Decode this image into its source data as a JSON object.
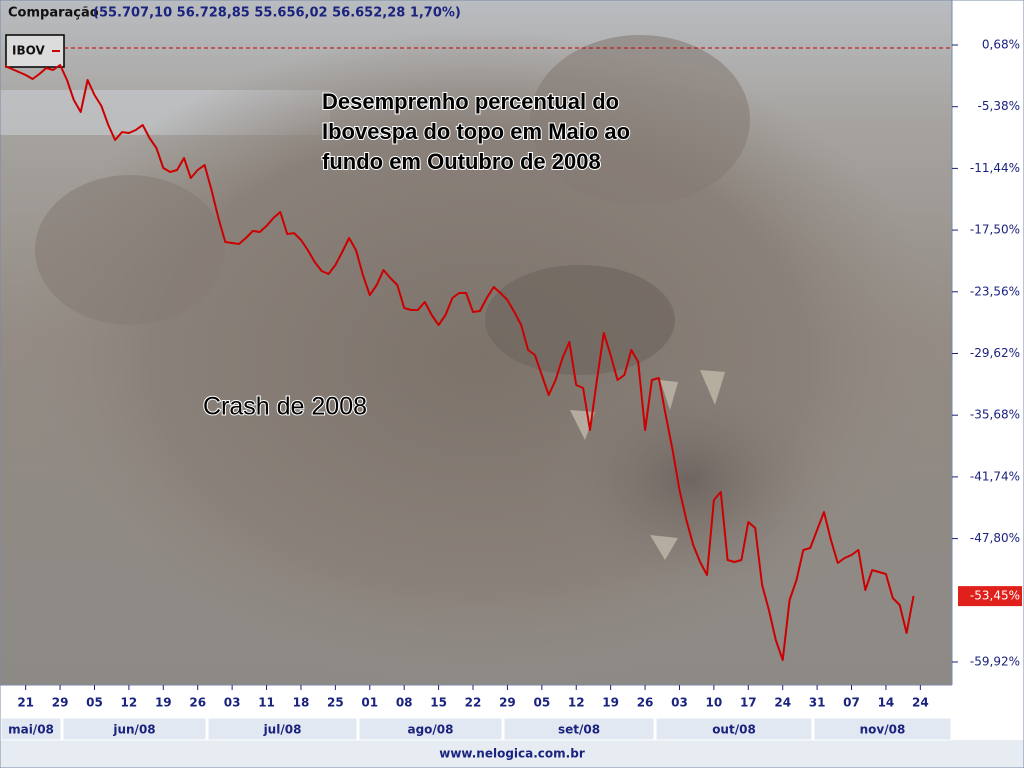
{
  "chart_data": {
    "type": "line",
    "title": "Comparação",
    "subtitle": "(55.707,10  56.728,85  55.656,02  56.652,28  1,70%)",
    "annotations": [
      "Desemprenho percentual do",
      "Ibovespa do topo em Maio ao",
      "fundo em Outubro de 2008",
      "Crash de 2008"
    ],
    "source": "www.nelogica.com.br",
    "months": [
      "mai/08",
      "jun/08",
      "jul/08",
      "ago/08",
      "set/08",
      "out/08",
      "nov/08"
    ],
    "series": [
      {
        "name": "IBOV",
        "color": "#cc0000",
        "values": [
          -1.38,
          -1.68,
          -1.97,
          -2.27,
          -2.66,
          -2.17,
          -1.58,
          -1.78,
          -1.28,
          -2.76,
          -4.72,
          -5.9,
          -2.76,
          -4.23,
          -5.31,
          -7.18,
          -8.65,
          -7.87,
          -7.96,
          -7.67,
          -7.18,
          -8.45,
          -9.44,
          -11.4,
          -11.79,
          -11.6,
          -10.42,
          -12.38,
          -11.6,
          -11.11,
          -13.56,
          -16.31,
          -18.67,
          -18.77,
          -18.87,
          -18.28,
          -17.59,
          -17.69,
          -17.1,
          -16.31,
          -15.72,
          -17.88,
          -17.79,
          -18.47,
          -19.46,
          -20.63,
          -21.52,
          -21.81,
          -20.93,
          -19.65,
          -18.28,
          -19.46,
          -21.91,
          -23.88,
          -22.89,
          -21.42,
          -22.21,
          -22.89,
          -25.15,
          -25.35,
          -25.35,
          -24.56,
          -25.84,
          -26.82,
          -25.84,
          -24.17,
          -23.68,
          -23.68,
          -25.54,
          -25.45,
          -24.17,
          -23.09,
          -23.68,
          -24.37,
          -25.54,
          -26.82,
          -29.28,
          -29.77,
          -31.73,
          -33.7,
          -32.22,
          -30.06,
          -28.49,
          -32.71,
          -33.01,
          -37.13,
          -32.22,
          -27.61,
          -29.77,
          -32.22,
          -31.73,
          -29.28,
          -30.46,
          -37.13,
          -32.22,
          -32.03,
          -35.66,
          -39.1,
          -43.03,
          -45.97,
          -48.43,
          -50.1,
          -51.38,
          -44.01,
          -43.22,
          -49.9,
          -50.1,
          -49.9,
          -46.17,
          -46.76,
          -52.36,
          -54.81,
          -57.76,
          -59.73,
          -53.83,
          -51.87,
          -48.92,
          -48.72,
          -46.96,
          -45.19,
          -47.94,
          -50.2,
          -49.71,
          -49.41,
          -48.92,
          -52.85,
          -50.89,
          -51.08,
          -51.28,
          -53.64,
          -54.32,
          -57.07,
          -53.45
        ]
      }
    ],
    "last_value": {
      "value": -53.45,
      "label": "-53,45%"
    },
    "xlim": [
      -0.73,
      137.6
    ],
    "xticks": [
      {
        "value": 3,
        "label": "21"
      },
      {
        "value": 8,
        "label": "29"
      },
      {
        "value": 13,
        "label": "05"
      },
      {
        "value": 18,
        "label": "12"
      },
      {
        "value": 23,
        "label": "19"
      },
      {
        "value": 28,
        "label": "26"
      },
      {
        "value": 33,
        "label": "03"
      },
      {
        "value": 38,
        "label": "11"
      },
      {
        "value": 43,
        "label": "18"
      },
      {
        "value": 48,
        "label": "25"
      },
      {
        "value": 53,
        "label": "01"
      },
      {
        "value": 58,
        "label": "08"
      },
      {
        "value": 63,
        "label": "15"
      },
      {
        "value": 68,
        "label": "22"
      },
      {
        "value": 73,
        "label": "29"
      },
      {
        "value": 78,
        "label": "05"
      },
      {
        "value": 83,
        "label": "12"
      },
      {
        "value": 88,
        "label": "19"
      },
      {
        "value": 93,
        "label": "26"
      },
      {
        "value": 98,
        "label": "03"
      },
      {
        "value": 103,
        "label": "10"
      },
      {
        "value": 108,
        "label": "17"
      },
      {
        "value": 113,
        "label": "24"
      },
      {
        "value": 118,
        "label": "31"
      },
      {
        "value": 123,
        "label": "07"
      },
      {
        "value": 128,
        "label": "14"
      },
      {
        "value": 133,
        "label": "24"
      }
    ],
    "ylim": [
      -62.18,
      5.1
    ],
    "yticks": [
      {
        "value": 0.68,
        "label": "0,68%"
      },
      {
        "value": -5.38,
        "label": "-5,38%"
      },
      {
        "value": -11.44,
        "label": "-11,44%"
      },
      {
        "value": -17.5,
        "label": "-17,50%"
      },
      {
        "value": -23.56,
        "label": "-23,56%"
      },
      {
        "value": -29.62,
        "label": "-29,62%"
      },
      {
        "value": -35.68,
        "label": "-35,68%"
      },
      {
        "value": -41.74,
        "label": "-41,74%"
      },
      {
        "value": -47.8,
        "label": "-47,80%"
      },
      {
        "value": -59.92,
        "label": "-59,92%"
      }
    ]
  }
}
